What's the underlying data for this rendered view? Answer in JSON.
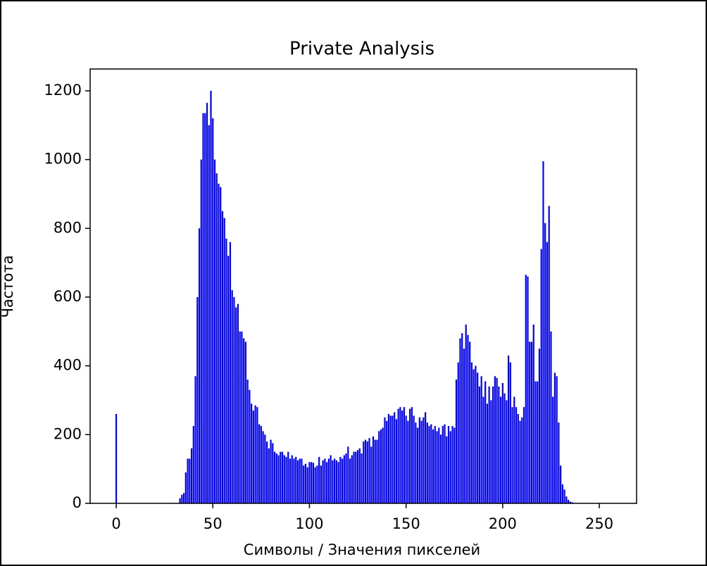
{
  "chart_data": {
    "type": "bar",
    "title": "Private Analysis",
    "xlabel": "Символы / Значения пикселей",
    "ylabel": "Частота",
    "color": "#0000ff",
    "x": [
      0,
      1,
      2,
      3,
      4,
      5,
      6,
      7,
      8,
      9,
      10,
      11,
      12,
      13,
      14,
      15,
      16,
      17,
      18,
      19,
      20,
      21,
      22,
      23,
      24,
      25,
      26,
      27,
      28,
      29,
      30,
      31,
      32,
      33,
      34,
      35,
      36,
      37,
      38,
      39,
      40,
      41,
      42,
      43,
      44,
      45,
      46,
      47,
      48,
      49,
      50,
      51,
      52,
      53,
      54,
      55,
      56,
      57,
      58,
      59,
      60,
      61,
      62,
      63,
      64,
      65,
      66,
      67,
      68,
      69,
      70,
      71,
      72,
      73,
      74,
      75,
      76,
      77,
      78,
      79,
      80,
      81,
      82,
      83,
      84,
      85,
      86,
      87,
      88,
      89,
      90,
      91,
      92,
      93,
      94,
      95,
      96,
      97,
      98,
      99,
      100,
      101,
      102,
      103,
      104,
      105,
      106,
      107,
      108,
      109,
      110,
      111,
      112,
      113,
      114,
      115,
      116,
      117,
      118,
      119,
      120,
      121,
      122,
      123,
      124,
      125,
      126,
      127,
      128,
      129,
      130,
      131,
      132,
      133,
      134,
      135,
      136,
      137,
      138,
      139,
      140,
      141,
      142,
      143,
      144,
      145,
      146,
      147,
      148,
      149,
      150,
      151,
      152,
      153,
      154,
      155,
      156,
      157,
      158,
      159,
      160,
      161,
      162,
      163,
      164,
      165,
      166,
      167,
      168,
      169,
      170,
      171,
      172,
      173,
      174,
      175,
      176,
      177,
      178,
      179,
      180,
      181,
      182,
      183,
      184,
      185,
      186,
      187,
      188,
      189,
      190,
      191,
      192,
      193,
      194,
      195,
      196,
      197,
      198,
      199,
      200,
      201,
      202,
      203,
      204,
      205,
      206,
      207,
      208,
      209,
      210,
      211,
      212,
      213,
      214,
      215,
      216,
      217,
      218,
      219,
      220,
      221,
      222,
      223,
      224,
      225,
      226,
      227,
      228,
      229,
      230,
      231,
      232,
      233,
      234,
      235,
      236,
      237,
      238,
      239,
      240,
      241,
      242,
      243,
      244,
      245,
      246,
      247,
      248,
      249,
      250,
      251,
      252,
      253,
      254,
      255
    ],
    "values": [
      260,
      0,
      0,
      0,
      0,
      0,
      0,
      0,
      0,
      0,
      0,
      0,
      0,
      0,
      0,
      0,
      0,
      0,
      0,
      0,
      0,
      0,
      0,
      0,
      0,
      0,
      0,
      0,
      0,
      0,
      0,
      0,
      0,
      15,
      25,
      30,
      90,
      130,
      130,
      160,
      225,
      370,
      600,
      800,
      1000,
      1135,
      1135,
      1165,
      1100,
      1200,
      1120,
      1000,
      960,
      930,
      920,
      850,
      830,
      770,
      720,
      760,
      620,
      600,
      570,
      580,
      500,
      500,
      480,
      470,
      360,
      330,
      290,
      270,
      285,
      280,
      230,
      225,
      210,
      200,
      180,
      160,
      185,
      175,
      150,
      145,
      140,
      150,
      150,
      140,
      135,
      150,
      130,
      140,
      130,
      135,
      125,
      130,
      130,
      110,
      115,
      105,
      120,
      120,
      118,
      105,
      110,
      135,
      110,
      125,
      130,
      120,
      130,
      140,
      125,
      130,
      125,
      120,
      135,
      130,
      140,
      145,
      165,
      130,
      140,
      150,
      150,
      155,
      160,
      145,
      180,
      185,
      180,
      190,
      165,
      195,
      185,
      185,
      210,
      215,
      220,
      250,
      240,
      260,
      255,
      255,
      265,
      245,
      275,
      280,
      270,
      280,
      255,
      240,
      275,
      280,
      255,
      235,
      220,
      250,
      240,
      250,
      265,
      235,
      225,
      230,
      215,
      225,
      210,
      220,
      200,
      225,
      230,
      195,
      225,
      210,
      225,
      220,
      360,
      410,
      480,
      495,
      450,
      520,
      490,
      470,
      410,
      390,
      400,
      380,
      340,
      370,
      310,
      355,
      290,
      340,
      300,
      340,
      370,
      365,
      340,
      310,
      350,
      320,
      300,
      430,
      410,
      280,
      310,
      280,
      260,
      240,
      250,
      280,
      665,
      660,
      470,
      470,
      520,
      355,
      355,
      450,
      740,
      995,
      815,
      760,
      865,
      500,
      310,
      380,
      370,
      235,
      110,
      55,
      40,
      20,
      10,
      5,
      3,
      1,
      0,
      0,
      0,
      0,
      0,
      0,
      0,
      0,
      0,
      0,
      0,
      0,
      0,
      0,
      0,
      0,
      0,
      0
    ],
    "xlim": [
      -13.5,
      269.3
    ],
    "ylim": [
      0,
      1263.5
    ],
    "xticks": [
      0,
      50,
      100,
      150,
      200,
      250
    ],
    "yticks": [
      0,
      200,
      400,
      600,
      800,
      1000,
      1200
    ]
  }
}
